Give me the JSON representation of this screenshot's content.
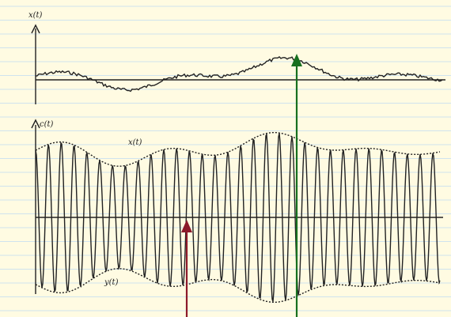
{
  "labels": {
    "top_axis": "x(t)",
    "bottom_axis": "c(t)",
    "upper_envelope": "x(t)",
    "lower_envelope": "y(t)"
  }
}
